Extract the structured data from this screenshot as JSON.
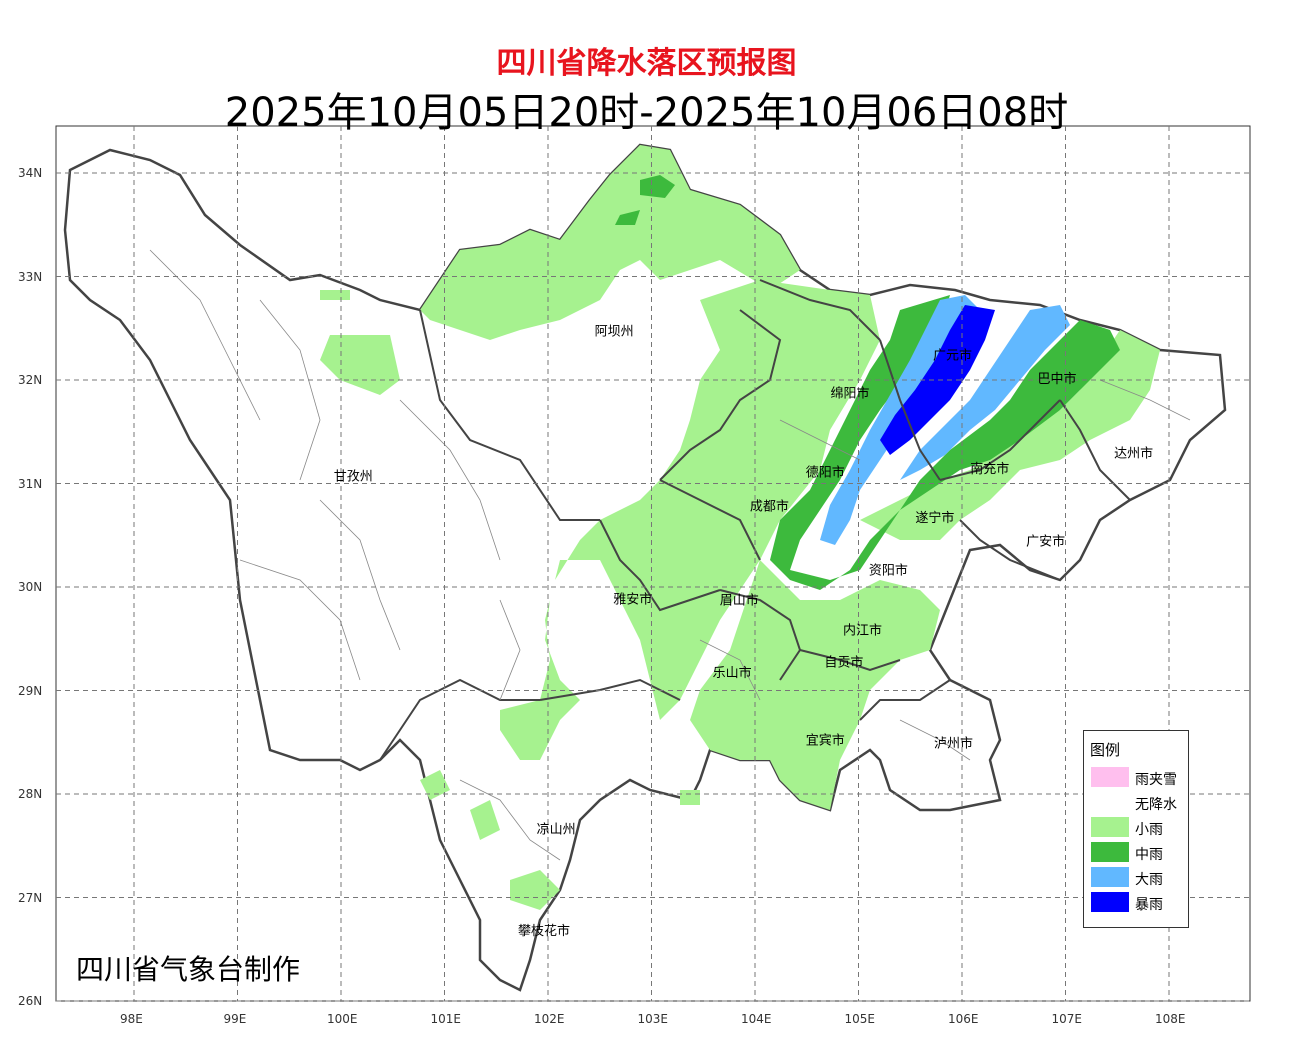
{
  "title": "四川省降水落区预报图",
  "subtitle": "2025年10月05日20时-2025年10月06日08时",
  "credit": "四川省气象台制作",
  "axes": {
    "lat_labels": [
      "34N",
      "33N",
      "32N",
      "31N",
      "30N",
      "29N",
      "28N",
      "27N",
      "26N"
    ],
    "lon_labels": [
      "98E",
      "99E",
      "100E",
      "101E",
      "102E",
      "103E",
      "104E",
      "105E",
      "106E",
      "107E",
      "108E"
    ],
    "lat_values": [
      34,
      33,
      32,
      31,
      30,
      29,
      28,
      27,
      26
    ],
    "lon_values": [
      98,
      99,
      100,
      101,
      102,
      103,
      104,
      105,
      106,
      107,
      108
    ]
  },
  "cities": [
    {
      "name": "阿坝州",
      "lon": 102.45,
      "lat": 32.43
    },
    {
      "name": "甘孜州",
      "lon": 99.93,
      "lat": 31.03
    },
    {
      "name": "绵阳市",
      "lon": 104.73,
      "lat": 31.83
    },
    {
      "name": "广元市",
      "lon": 105.72,
      "lat": 32.2
    },
    {
      "name": "巴中市",
      "lon": 106.73,
      "lat": 31.97
    },
    {
      "name": "达州市",
      "lon": 107.47,
      "lat": 31.25
    },
    {
      "name": "德阳市",
      "lon": 104.49,
      "lat": 31.07
    },
    {
      "name": "南充市",
      "lon": 106.08,
      "lat": 31.1
    },
    {
      "name": "成都市",
      "lon": 103.95,
      "lat": 30.74
    },
    {
      "name": "遂宁市",
      "lon": 105.55,
      "lat": 30.63
    },
    {
      "name": "广安市",
      "lon": 106.62,
      "lat": 30.4
    },
    {
      "name": "资阳市",
      "lon": 105.1,
      "lat": 30.12
    },
    {
      "name": "雅安市",
      "lon": 102.63,
      "lat": 29.84
    },
    {
      "name": "眉山市",
      "lon": 103.66,
      "lat": 29.83
    },
    {
      "name": "内江市",
      "lon": 104.85,
      "lat": 29.54
    },
    {
      "name": "自贡市",
      "lon": 104.67,
      "lat": 29.23
    },
    {
      "name": "乐山市",
      "lon": 103.59,
      "lat": 29.13
    },
    {
      "name": "宜宾市",
      "lon": 104.49,
      "lat": 28.48
    },
    {
      "name": "泸州市",
      "lon": 105.73,
      "lat": 28.45
    },
    {
      "name": "凉山州",
      "lon": 101.89,
      "lat": 27.62
    },
    {
      "name": "攀枝花市",
      "lon": 101.71,
      "lat": 26.64
    }
  ],
  "legend": {
    "title": "图例",
    "items": [
      {
        "label": "雨夹雪",
        "color": "#ffbfee"
      },
      {
        "label": "无降水",
        "color": "#ffffff"
      },
      {
        "label": "小雨",
        "color": "#a6f28f"
      },
      {
        "label": "中雨",
        "color": "#3dba3d"
      },
      {
        "label": "大雨",
        "color": "#61b8ff"
      },
      {
        "label": "暴雨",
        "color": "#0000fe"
      }
    ]
  }
}
